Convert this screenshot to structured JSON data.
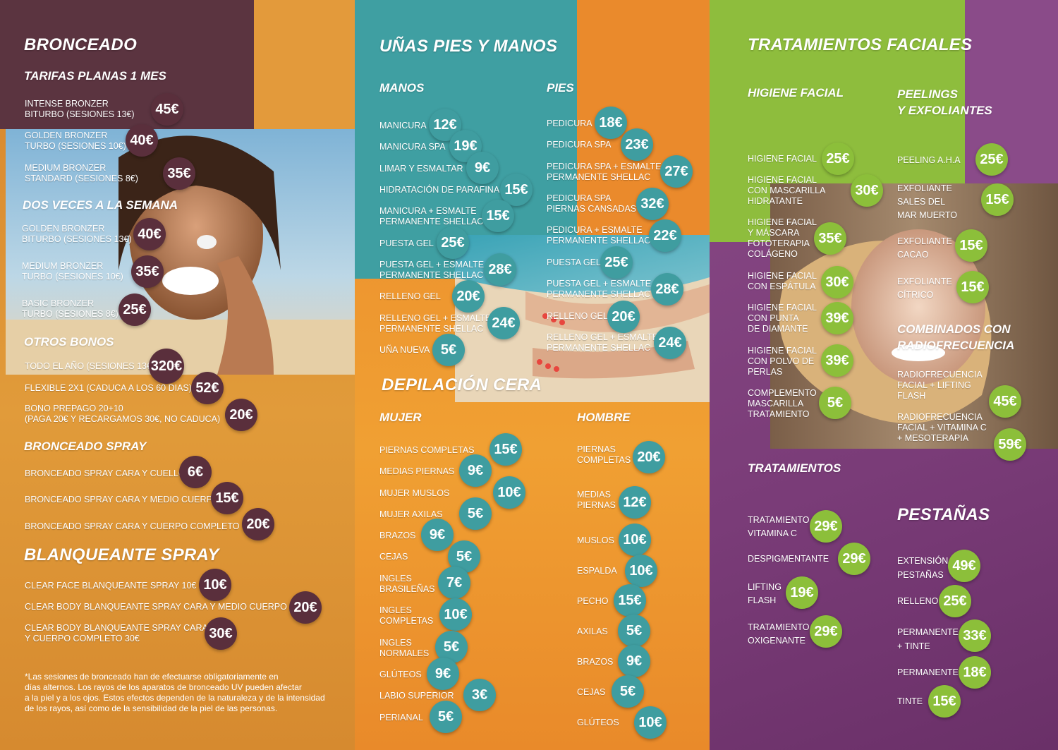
{
  "p1": {
    "title": "BRONCEADO",
    "sub_tarifas": "TARIFAS PLANAS 1 MES",
    "tarifas": [
      {
        "label": "INTENSE BRONZER\nBITURBO (SESIONES 13€)",
        "price": "45€"
      },
      {
        "label": "GOLDEN BRONZER\nTURBO (SESIONES 10€)",
        "price": "40€"
      },
      {
        "label": "MEDIUM BRONZER\nSTANDARD (SESIONES 8€)",
        "price": "35€"
      }
    ],
    "sub_dos": "DOS VECES A LA SEMANA",
    "dos": [
      {
        "label": "GOLDEN BRONZER\nBITURBO (SESIONES 13€)",
        "price": "40€"
      },
      {
        "label": "MEDIUM BRONZER\nTURBO (SESIONES 10€)",
        "price": "35€"
      },
      {
        "label": "BASIC BRONZER\nTURBO (SESIONES 8€)",
        "price": "25€"
      }
    ],
    "sub_otros": "OTROS BONOS",
    "otros": [
      {
        "label": "TODO EL AÑO (SESIONES 13€)",
        "price": "320€"
      },
      {
        "label": "FLEXIBLE 2X1 (CADUCA A LOS 60 DIAS)",
        "price": "52€"
      },
      {
        "label": "BONO PREPAGO 20+10\n(PAGA 20€ Y RECARGAMOS 30€, NO CADUCA)",
        "price": "20€"
      }
    ],
    "sub_spray": "BRONCEADO SPRAY",
    "spray": [
      {
        "label": "BRONCEADO SPRAY CARA Y CUELLO",
        "price": "6€"
      },
      {
        "label": "BRONCEADO SPRAY CARA Y MEDIO CUERPO",
        "price": "15€"
      },
      {
        "label": "BRONCEADO SPRAY CARA Y CUERPO COMPLETO",
        "price": "20€"
      }
    ],
    "sub_blanq": "BLANQUEANTE SPRAY",
    "blanq": [
      {
        "label": "CLEAR FACE BLANQUEANTE SPRAY 10€",
        "price": "10€"
      },
      {
        "label": "CLEAR BODY BLANQUEANTE SPRAY CARA Y MEDIO CUERPO 20€",
        "price": "20€"
      },
      {
        "label": "CLEAR BODY BLANQUEANTE SPRAY CARA\nY CUERPO COMPLETO 30€",
        "price": "30€"
      }
    ],
    "note": "*Las sesiones de bronceado han de efectuarse obligatoriamente en\ndías alternos. Los rayos de los aparatos de bronceado UV pueden afectar\na la piel y a los ojos. Estos efectos dependen de la naturaleza y de la intensidad\nde los rayos, así como de la sensibilidad de la piel de las personas."
  },
  "p2": {
    "title": "UÑAS PIES Y MANOS",
    "sub_manos": "MANOS",
    "manos": [
      {
        "label": "MANICURA",
        "price": "12€"
      },
      {
        "label": "MANICURA SPA",
        "price": "19€"
      },
      {
        "label": "LIMAR Y ESMALTAR",
        "price": "9€"
      },
      {
        "label": "HIDRATACIÓN DE PARAFINA",
        "price": "15€"
      },
      {
        "label": "MANICURA + ESMALTE\nPERMANENTE SHELLAC",
        "price": "15€"
      },
      {
        "label": "PUESTA GEL",
        "price": "25€"
      },
      {
        "label": "PUESTA GEL + ESMALTE\nPERMANENTE SHELLAC",
        "price": "28€"
      },
      {
        "label": "RELLENO GEL",
        "price": "20€"
      },
      {
        "label": "RELLENO GEL + ESMALTE\nPERMANENTE SHELLAC",
        "price": "24€"
      },
      {
        "label": "UÑA NUEVA",
        "price": "5€"
      }
    ],
    "sub_pies": "PIES",
    "pies": [
      {
        "label": "PEDICURA",
        "price": "18€"
      },
      {
        "label": "PEDICURA SPA",
        "price": "23€"
      },
      {
        "label": "PEDICURA SPA + ESMALTE\nPERMANENTE SHELLAC",
        "price": "27€"
      },
      {
        "label": "PEDICURA SPA\nPIERNAS CANSADAS",
        "price": "32€"
      },
      {
        "label": "PEDICURA + ESMALTE\nPERMANENTE SHELLAC",
        "price": "22€"
      },
      {
        "label": "PUESTA GEL",
        "price": "25€"
      },
      {
        "label": "PUESTA GEL + ESMALTE\nPERMANENTE SHELLAC",
        "price": "28€"
      },
      {
        "label": "RELLENO GEL",
        "price": "20€"
      },
      {
        "label": "RELLENO GEL + ESMALTE\nPERMANENTE SHELLAC",
        "price": "24€"
      }
    ],
    "title2": "DEPILACIÓN CERA",
    "sub_mujer": "MUJER",
    "mujer": [
      {
        "label": "PIERNAS COMPLETAS",
        "price": "15€"
      },
      {
        "label": "MEDIAS PIERNAS",
        "price": "9€"
      },
      {
        "label": "MUJER MUSLOS",
        "price": "10€"
      },
      {
        "label": "MUJER AXILAS",
        "price": "5€"
      },
      {
        "label": "BRAZOS",
        "price": "9€"
      },
      {
        "label": "CEJAS",
        "price": "5€"
      },
      {
        "label": "INGLES\nBRASILEÑAS",
        "price": "7€"
      },
      {
        "label": "INGLES\nCOMPLETAS",
        "price": "10€"
      },
      {
        "label": "INGLES\nNORMALES",
        "price": "5€"
      },
      {
        "label": "GLÚTEOS",
        "price": "9€"
      },
      {
        "label": "LABIO SUPERIOR",
        "price": "3€"
      },
      {
        "label": "PERIANAL",
        "price": "5€"
      }
    ],
    "sub_hombre": "HOMBRE",
    "hombre": [
      {
        "label": "PIERNAS\nCOMPLETAS",
        "price": "20€"
      },
      {
        "label": "MEDIAS\nPIERNAS",
        "price": "12€"
      },
      {
        "label": "MUSLOS",
        "price": "10€"
      },
      {
        "label": "ESPALDA",
        "price": "10€"
      },
      {
        "label": "PECHO",
        "price": "15€"
      },
      {
        "label": "AXILAS",
        "price": "5€"
      },
      {
        "label": "BRAZOS",
        "price": "9€"
      },
      {
        "label": "CEJAS",
        "price": "5€"
      },
      {
        "label": "GLÚTEOS",
        "price": "10€"
      }
    ]
  },
  "p3": {
    "title": "TRATAMIENTOS FACIALES",
    "sub_higiene": "HIGIENE FACIAL",
    "higiene": [
      {
        "label": "HIGIENE FACIAL",
        "price": "25€"
      },
      {
        "label": "HIGIENE FACIAL\nCON MASCARILLA\nHIDRATANTE",
        "price": "30€"
      },
      {
        "label": "HIGIENE FACIAL\nY MÁSCARA\nFOTOTERAPIA\nCOLÁGENO",
        "price": "35€"
      },
      {
        "label": "HIGIENE FACIAL\nCON ESPÁTULA",
        "price": "30€"
      },
      {
        "label": "HIGIENE FACIAL\nCON PUNTA\nDE DIAMANTE",
        "price": "39€"
      },
      {
        "label": "HIGIENE FACIAL\nCON POLVO DE\nPERLAS",
        "price": "39€"
      },
      {
        "label": "COMPLEMENTO\nMASCARILLA\nTRATAMIENTO",
        "price": "5€"
      }
    ],
    "sub_peelings": "PEELINGS\nY EXFOLIANTES",
    "peelings": [
      {
        "label": "PEELING A.H.A",
        "price": "25€"
      },
      {
        "label": "EXFOLIANTE\nSALES DEL\nMAR MUERTO",
        "price": "15€"
      },
      {
        "label": "EXFOLIANTE\nCACAO",
        "price": "15€"
      },
      {
        "label": "EXFOLIANTE\nCÍTRICO",
        "price": "15€"
      }
    ],
    "sub_combinados": "COMBINADOS CON\nRADIOFRECUENCIA",
    "combinados": [
      {
        "label": "RADIOFRECUENCIA\nFACIAL + LIFTING\nFLASH",
        "price": "45€"
      },
      {
        "label": "RADIOFRECUENCIA\nFACIAL + VITAMINA C\n+ MESOTERAPIA",
        "price": "59€"
      }
    ],
    "sub_tratamientos": "TRATAMIENTOS",
    "tratamientos": [
      {
        "label": "TRATAMIENTO\nVITAMINA C",
        "price": "29€"
      },
      {
        "label": "DESPIGMENTANTE",
        "price": "29€"
      },
      {
        "label": "LIFTING\nFLASH",
        "price": "19€"
      },
      {
        "label": "TRATAMIENTO\nOXIGENANTE",
        "price": "29€"
      }
    ],
    "title_pestanas": "PESTAÑAS",
    "pestanas": [
      {
        "label": "EXTENSIÓN\nPESTAÑAS",
        "price": "49€"
      },
      {
        "label": "RELLENO",
        "price": "25€"
      },
      {
        "label": "PERMANENTE\n+ TINTE",
        "price": "33€"
      },
      {
        "label": "PERMANENTE",
        "price": "18€"
      },
      {
        "label": "TINTE",
        "price": "15€"
      }
    ]
  },
  "colors": {
    "dark": "#5a2f3c",
    "teal": "#3f9da0",
    "green": "#8cbf3a",
    "purple": "#7a3c78",
    "orange": "#e9872a"
  }
}
